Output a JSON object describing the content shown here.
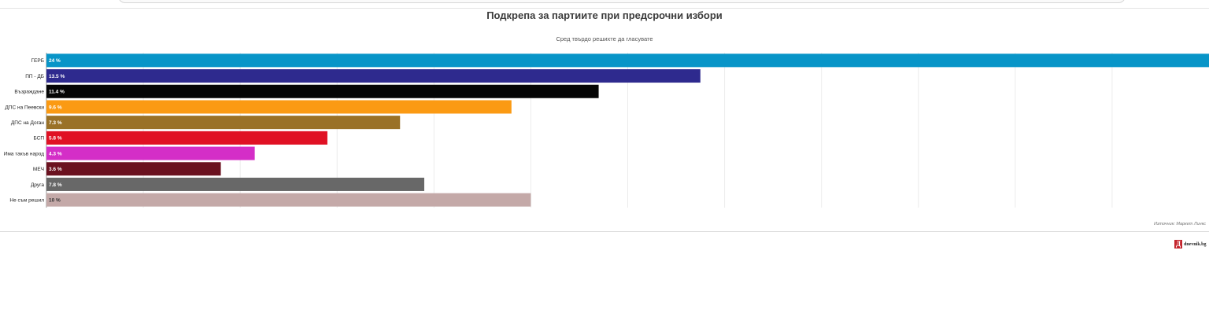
{
  "chart_data": {
    "type": "bar",
    "orientation": "horizontal",
    "title": "Подкрепа за партиите при предсрочни избори",
    "subtitle": "Сред твърдо решихте да гласувате",
    "categories": [
      "ГЕРБ",
      "ПП - ДБ",
      "Възраждане",
      "ДПС на Пеевски",
      "ДПС на Доган",
      "БСП",
      "Има такъв народ",
      "МЕЧ",
      "Друга",
      "Не съм решил"
    ],
    "values": [
      24,
      13.5,
      11.4,
      9.6,
      7.3,
      5.8,
      4.3,
      3.6,
      7.8,
      10
    ],
    "value_labels": [
      "24 %",
      "13.5 %",
      "11.4 %",
      "9.6 %",
      "7.3 %",
      "5.8 %",
      "4.3 %",
      "3.6 %",
      "7.8 %",
      "10 %"
    ],
    "colors": [
      "#0895c8",
      "#2e2a8e",
      "#050505",
      "#fb9a13",
      "#9a7127",
      "#e01124",
      "#d42ec7",
      "#6b1220",
      "#686868",
      "#c4a9a8"
    ],
    "value_label_colors": [
      "#ffffff",
      "#ffffff",
      "#ffffff",
      "#ffffff",
      "#ffffff",
      "#ffffff",
      "#ffffff",
      "#ffffff",
      "#ffffff",
      "#333333"
    ],
    "xlim": [
      0,
      24
    ],
    "grid": true,
    "legend": "none",
    "xlabel": "",
    "ylabel": ""
  },
  "source": "Източник: Маркет Линкс",
  "brand": {
    "mark": "Д",
    "name": "dnevnik.bg"
  }
}
